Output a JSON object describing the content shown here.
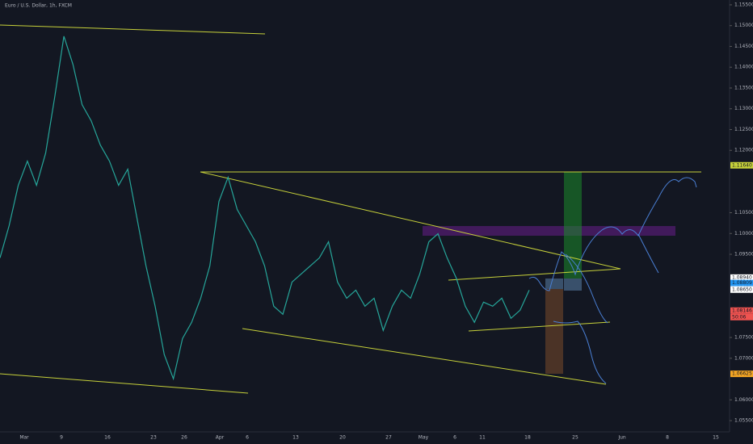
{
  "chart_data": {
    "type": "line",
    "title": "Euro / U.S. Dollar, 1h, FXCM",
    "x_labels": [
      "Mar",
      "9",
      "16",
      "23",
      "26",
      "Apr",
      "6",
      "13",
      "20",
      "27",
      "May",
      "6",
      "11",
      "18",
      "25",
      "Jun",
      "8",
      "15"
    ],
    "series": [
      {
        "color": "#26a69a",
        "values": [
          1.09414,
          1.1019,
          1.11159,
          1.1174,
          1.11159,
          1.11934,
          1.1329,
          1.14744,
          1.14066,
          1.13097,
          1.12709,
          1.12128,
          1.1174,
          1.11159,
          1.11546,
          1.10383,
          1.09221,
          1.08252,
          1.07089,
          1.06507,
          1.07476,
          1.07864,
          1.08445,
          1.09221,
          1.10771,
          1.11352,
          1.10577,
          1.1019,
          1.09802,
          1.09221,
          1.08252,
          1.08058,
          1.08833,
          1.09027,
          1.09221,
          1.09414,
          1.09802,
          1.08833,
          1.08445,
          1.08639,
          1.08252,
          1.08445,
          1.0767,
          1.08252,
          1.08639,
          1.08445,
          1.09027,
          1.09802,
          1.09996,
          1.09414,
          1.0893,
          1.08252,
          1.07864,
          1.08349,
          1.08252,
          1.08445,
          1.07961,
          1.08155,
          1.08639
        ]
      }
    ],
    "ylim": [
      1.05229,
      1.15616
    ],
    "yticks": [
      {
        "value": 1.155,
        "label": "1.15500"
      },
      {
        "value": 1.15,
        "label": "1.15000"
      },
      {
        "value": 1.145,
        "label": "1.14500"
      },
      {
        "value": 1.14,
        "label": "1.14000"
      },
      {
        "value": 1.135,
        "label": "1.13500"
      },
      {
        "value": 1.13,
        "label": "1.13000"
      },
      {
        "value": 1.125,
        "label": "1.12500"
      },
      {
        "value": 1.12,
        "label": "1.12000"
      },
      {
        "value": 1.105,
        "label": "1.10500"
      },
      {
        "value": 1.1,
        "label": "1.10000"
      },
      {
        "value": 1.095,
        "label": "1.09500"
      },
      {
        "value": 1.075,
        "label": "1.07500"
      },
      {
        "value": 1.07,
        "label": "1.07000"
      },
      {
        "value": 1.06,
        "label": "1.06000"
      },
      {
        "value": 1.055,
        "label": "1.05500"
      }
    ],
    "price_tags": [
      {
        "value": 1.1164,
        "label": "1.11640",
        "color": "#c7d13a"
      },
      {
        "value": 1.0894,
        "label": "1.08940",
        "color": "#ffffff"
      },
      {
        "value": 1.08809,
        "label": "1.08809",
        "color": "#2196f3"
      },
      {
        "value": 1.08672,
        "label": "1.08672",
        "color": "#64b5f6"
      },
      {
        "value": 1.0865,
        "label": "1.08650",
        "color": "#ffffff"
      },
      {
        "value": 1.08146,
        "label": "1.08146",
        "color": "#ef5350"
      },
      {
        "value": 1.06625,
        "label": "1.06625",
        "color": "#f5a623"
      }
    ],
    "countdown": "50:06"
  }
}
